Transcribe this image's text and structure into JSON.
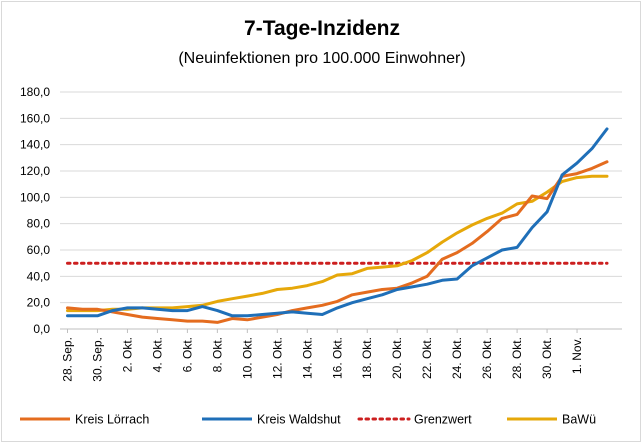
{
  "chart_data": {
    "type": "line",
    "title": "7-Tage-Inzidenz",
    "subtitle": "(Neuinfektionen pro 100.000 Einwohner)",
    "xlabel": "",
    "ylabel": "",
    "ylim": [
      0,
      180
    ],
    "y_ticks": [
      "0,0",
      "20,0",
      "40,0",
      "60,0",
      "80,0",
      "100,0",
      "120,0",
      "140,0",
      "160,0",
      "180,0"
    ],
    "grid": true,
    "legend_position": "bottom",
    "x_tick_labels": [
      "28. Sep.",
      "30. Sep.",
      "2. Okt.",
      "4. Okt.",
      "6. Okt.",
      "8. Okt.",
      "10. Okt.",
      "12. Okt.",
      "14. Okt.",
      "16. Okt.",
      "18. Okt.",
      "20. Okt.",
      "22. Okt.",
      "24. Okt.",
      "26. Okt.",
      "28. Okt.",
      "30. Okt.",
      "1. Nov."
    ],
    "x": [
      "28. Sep.",
      "29. Sep.",
      "30. Sep.",
      "1. Okt.",
      "2. Okt.",
      "3. Okt.",
      "4. Okt.",
      "5. Okt.",
      "6. Okt.",
      "7. Okt.",
      "8. Okt.",
      "9. Okt.",
      "10. Okt.",
      "11. Okt.",
      "12. Okt.",
      "13. Okt.",
      "14. Okt.",
      "15. Okt.",
      "16. Okt.",
      "17. Okt.",
      "18. Okt.",
      "19. Okt.",
      "20. Okt.",
      "21. Okt.",
      "22. Okt.",
      "23. Okt.",
      "24. Okt.",
      "25. Okt.",
      "26. Okt.",
      "27. Okt.",
      "28. Okt.",
      "29. Okt.",
      "30. Okt.",
      "31. Okt.",
      "1. Nov.",
      "2. Nov.",
      "3. Nov."
    ],
    "series": [
      {
        "name": "Kreis Lörrach",
        "color": "#e46c1f",
        "style": "solid",
        "values": [
          16,
          15,
          15,
          13,
          11,
          9,
          8,
          7,
          6,
          6,
          5,
          8,
          7,
          9,
          11,
          14,
          16,
          18,
          21,
          26,
          28,
          30,
          31,
          35,
          40,
          53,
          58,
          65,
          74,
          84,
          87,
          101,
          99,
          116,
          118,
          122,
          127
        ]
      },
      {
        "name": "Kreis Waldshut",
        "color": "#1f6fb8",
        "style": "solid",
        "values": [
          10,
          10,
          10,
          14,
          16,
          16,
          15,
          14,
          14,
          17,
          14,
          10,
          10,
          11,
          12,
          13,
          12,
          11,
          16,
          20,
          23,
          26,
          30,
          32,
          34,
          37,
          38,
          48,
          54,
          60,
          62,
          77,
          89,
          117,
          126,
          137,
          152
        ]
      },
      {
        "name": "Grenzwert",
        "color": "#cc1f1f",
        "style": "dotted",
        "values": [
          50,
          50,
          50,
          50,
          50,
          50,
          50,
          50,
          50,
          50,
          50,
          50,
          50,
          50,
          50,
          50,
          50,
          50,
          50,
          50,
          50,
          50,
          50,
          50,
          50,
          50,
          50,
          50,
          50,
          50,
          50,
          50,
          50,
          50,
          50,
          50,
          50
        ]
      },
      {
        "name": "BaWü",
        "color": "#e6a80a",
        "style": "solid",
        "values": [
          14,
          14,
          14,
          15,
          15,
          16,
          16,
          16,
          17,
          18,
          21,
          23,
          25,
          27,
          30,
          31,
          33,
          36,
          41,
          42,
          46,
          47,
          48,
          52,
          58,
          66,
          73,
          79,
          84,
          88,
          95,
          97,
          104,
          112,
          115,
          116,
          116
        ]
      }
    ]
  }
}
